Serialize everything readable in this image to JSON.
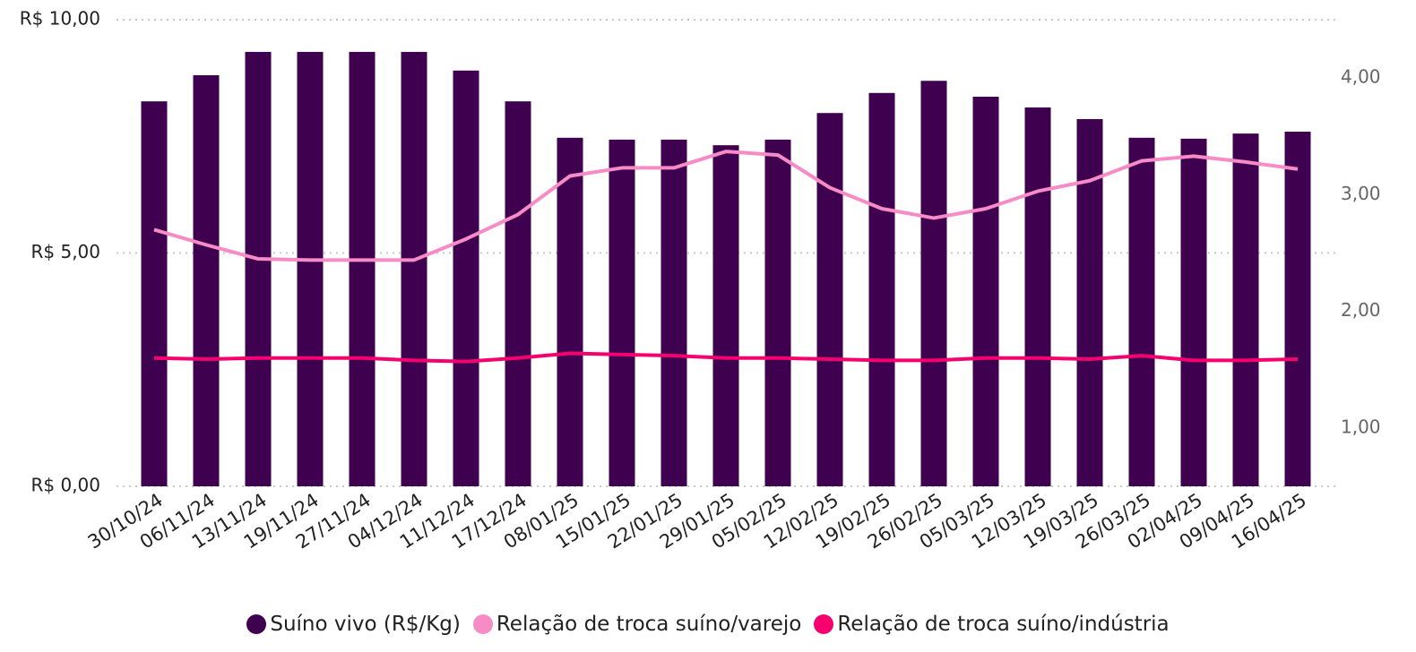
{
  "chart_data": {
    "type": "bar_line",
    "categories": [
      "30/10/24",
      "06/11/24",
      "13/11/24",
      "19/11/24",
      "27/11/24",
      "04/12/24",
      "11/12/24",
      "17/12/24",
      "08/01/25",
      "15/01/25",
      "22/01/25",
      "29/01/25",
      "05/02/25",
      "12/02/25",
      "19/02/25",
      "26/02/25",
      "05/03/25",
      "12/03/25",
      "19/03/25",
      "26/03/25",
      "02/04/25",
      "09/04/25",
      "16/04/25"
    ],
    "series": [
      {
        "name": "Suíno vivo (R$/Kg)",
        "type": "bar",
        "color": "#3f0050",
        "values": [
          8.25,
          8.81,
          9.31,
          9.31,
          9.31,
          9.31,
          8.91,
          8.25,
          7.47,
          7.43,
          7.43,
          7.31,
          7.43,
          8.0,
          8.43,
          8.69,
          8.35,
          8.12,
          7.87,
          7.47,
          7.45,
          7.56,
          7.6
        ]
      },
      {
        "name": "Relação de troca suíno/varejo",
        "type": "line",
        "axis": "y2",
        "color": "#f78bc5",
        "values": [
          2.7,
          2.57,
          2.45,
          2.44,
          2.44,
          2.44,
          2.62,
          2.83,
          3.16,
          3.23,
          3.23,
          3.37,
          3.34,
          3.06,
          2.88,
          2.8,
          2.88,
          3.03,
          3.12,
          3.29,
          3.33,
          3.28,
          3.22
        ]
      },
      {
        "name": "Relação de troca suíno/indústria",
        "type": "line",
        "axis": "y2",
        "color": "#f5006e",
        "values": [
          1.6,
          1.59,
          1.6,
          1.6,
          1.6,
          1.58,
          1.57,
          1.6,
          1.64,
          1.63,
          1.62,
          1.6,
          1.6,
          1.59,
          1.58,
          1.58,
          1.6,
          1.6,
          1.59,
          1.62,
          1.58,
          1.58,
          1.59
        ]
      }
    ],
    "ylim": [
      0,
      10
    ],
    "yticks": [
      {
        "value": 0,
        "label": "R$ 0,00"
      },
      {
        "value": 5,
        "label": "R$ 5,00"
      },
      {
        "value": 10,
        "label": "R$ 10,00"
      }
    ],
    "y2lim": [
      0.5,
      4.5
    ],
    "y2ticks": [
      {
        "value": 1,
        "label": "1,00"
      },
      {
        "value": 2,
        "label": "2,00"
      },
      {
        "value": 3,
        "label": "3,00"
      },
      {
        "value": 4,
        "label": "4,00"
      }
    ],
    "grid": true
  }
}
